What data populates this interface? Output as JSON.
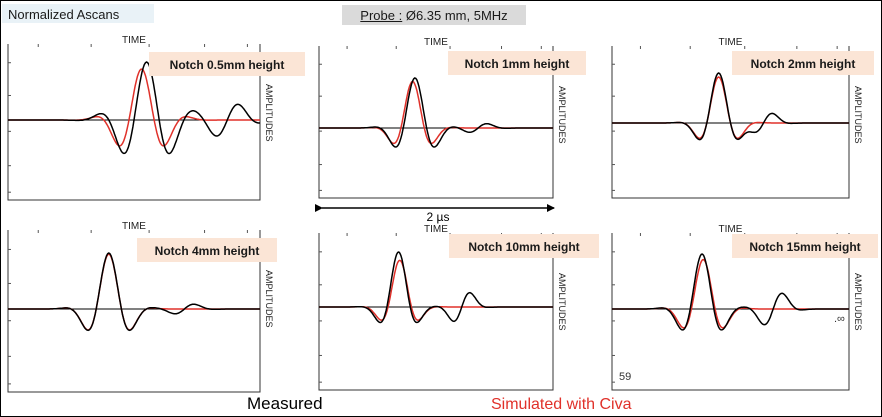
{
  "header": {
    "left_title": "Normalized Ascans",
    "probe_label": "Probe :",
    "probe_value": " Ø6.35 mm, 5MHz"
  },
  "legend": {
    "measured": "Measured",
    "simulated": "Simulated with Civa",
    "measured_color": "#000000",
    "simulated_color": "#e0312a"
  },
  "time_scale": {
    "label": "2 µs",
    "duration_us": 2
  },
  "page_number": "59",
  "stray_mark": ".∞",
  "chart_data": [
    {
      "type": "line",
      "title": "Notch 0.5mm height",
      "xlabel": "TIME",
      "ylabel": "AMPLITUDES",
      "ylim": [
        -1,
        1
      ],
      "series": [
        {
          "name": "Measured",
          "t0": 0.55,
          "sigma": 0.09,
          "freq": 5,
          "amp": 1.0,
          "tail": 0.33,
          "tail_dt": 0.32
        },
        {
          "name": "Simulated with Civa",
          "t0": 0.53,
          "sigma": 0.08,
          "freq": 5,
          "amp": 0.88,
          "tail": 0.0,
          "tail_dt": 0.0
        }
      ]
    },
    {
      "type": "line",
      "title": "Notch 1mm height",
      "xlabel": "TIME",
      "ylabel": "AMPLITUDES",
      "ylim": [
        -1,
        1
      ],
      "series": [
        {
          "name": "Measured",
          "t0": 0.41,
          "sigma": 0.065,
          "freq": 5,
          "amp": 1.0,
          "tail": 0.12,
          "tail_dt": 0.27
        },
        {
          "name": "Simulated with Civa",
          "t0": 0.4,
          "sigma": 0.06,
          "freq": 5,
          "amp": 0.93,
          "tail": 0.0,
          "tail_dt": 0.0
        }
      ]
    },
    {
      "type": "line",
      "title": "Notch 2mm height",
      "xlabel": "TIME",
      "ylabel": "AMPLITUDES",
      "ylim": [
        -1,
        1
      ],
      "series": [
        {
          "name": "Measured",
          "t0": 0.45,
          "sigma": 0.06,
          "freq": 5,
          "amp": 1.0,
          "tail": 0.28,
          "tail_dt": 0.19
        },
        {
          "name": "Simulated with Civa",
          "t0": 0.45,
          "sigma": 0.06,
          "freq": 5,
          "amp": 0.92,
          "tail": 0.0,
          "tail_dt": 0.0
        }
      ]
    },
    {
      "type": "line",
      "title": "Notch 4mm height",
      "xlabel": "TIME",
      "ylabel": "AMPLITUDES",
      "ylim": [
        -1,
        1
      ],
      "series": [
        {
          "name": "Measured",
          "t0": 0.4,
          "sigma": 0.065,
          "freq": 5,
          "amp": 1.0,
          "tail": 0.12,
          "tail_dt": 0.3
        },
        {
          "name": "Simulated with Civa",
          "t0": 0.4,
          "sigma": 0.065,
          "freq": 5,
          "amp": 0.98,
          "tail": 0.0,
          "tail_dt": 0.0
        }
      ]
    },
    {
      "type": "line",
      "title": "Notch 10mm height",
      "xlabel": "TIME",
      "ylabel": "AMPLITUDES",
      "ylim": [
        -1,
        1
      ],
      "series": [
        {
          "name": "Measured",
          "t0": 0.34,
          "sigma": 0.055,
          "freq": 5,
          "amp": 1.0,
          "tail": 0.4,
          "tail_dt": 0.27
        },
        {
          "name": "Simulated with Civa",
          "t0": 0.345,
          "sigma": 0.055,
          "freq": 5,
          "amp": 0.85,
          "tail": 0.0,
          "tail_dt": 0.0
        }
      ]
    },
    {
      "type": "line",
      "title": "Notch 15mm height",
      "xlabel": "TIME",
      "ylabel": "AMPLITUDES",
      "ylim": [
        -1,
        1
      ],
      "series": [
        {
          "name": "Measured",
          "t0": 0.38,
          "sigma": 0.065,
          "freq": 5,
          "amp": 1.0,
          "tail": 0.4,
          "tail_dt": 0.3
        },
        {
          "name": "Simulated with Civa",
          "t0": 0.385,
          "sigma": 0.065,
          "freq": 5,
          "amp": 0.9,
          "tail": 0.0,
          "tail_dt": 0.0
        }
      ]
    }
  ]
}
